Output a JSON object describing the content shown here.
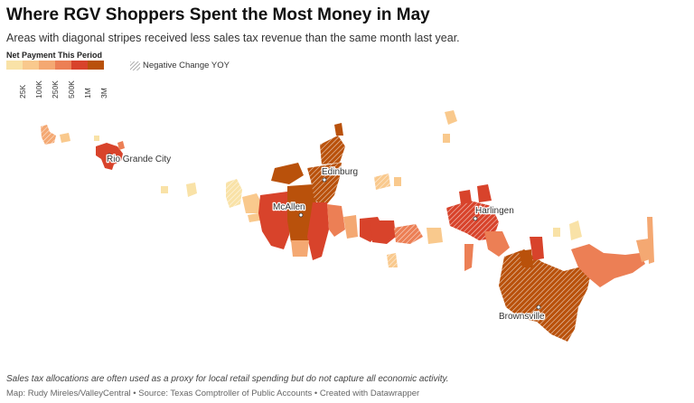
{
  "title": "Where RGV Shoppers Spent the Most Money in May",
  "subtitle": "Areas with diagonal stripes received less sales tax revenue than the same month last year.",
  "legend": {
    "title": "Net Payment This Period",
    "colors": [
      "#f9e2a7",
      "#f9c98d",
      "#f4a872",
      "#ec7f55",
      "#d8432b",
      "#b9510b"
    ],
    "ticks": [
      "25K",
      "100K",
      "250K",
      "500K",
      "1M",
      "3M"
    ],
    "negative_label": "Negative Change YOY"
  },
  "cities": [
    {
      "name": "Rio Grande City"
    },
    {
      "name": "Edinburg"
    },
    {
      "name": "McAllen"
    },
    {
      "name": "Harlingen"
    },
    {
      "name": "Brownsville"
    }
  ],
  "footnote": "Sales tax allocations are often used as a proxy for local retail spending but do not capture all economic activity.",
  "credits": "Map: Rudy Mireles/ValleyCentral • Source: Texas Comptroller of Public Accounts • Created with Datawrapper"
}
